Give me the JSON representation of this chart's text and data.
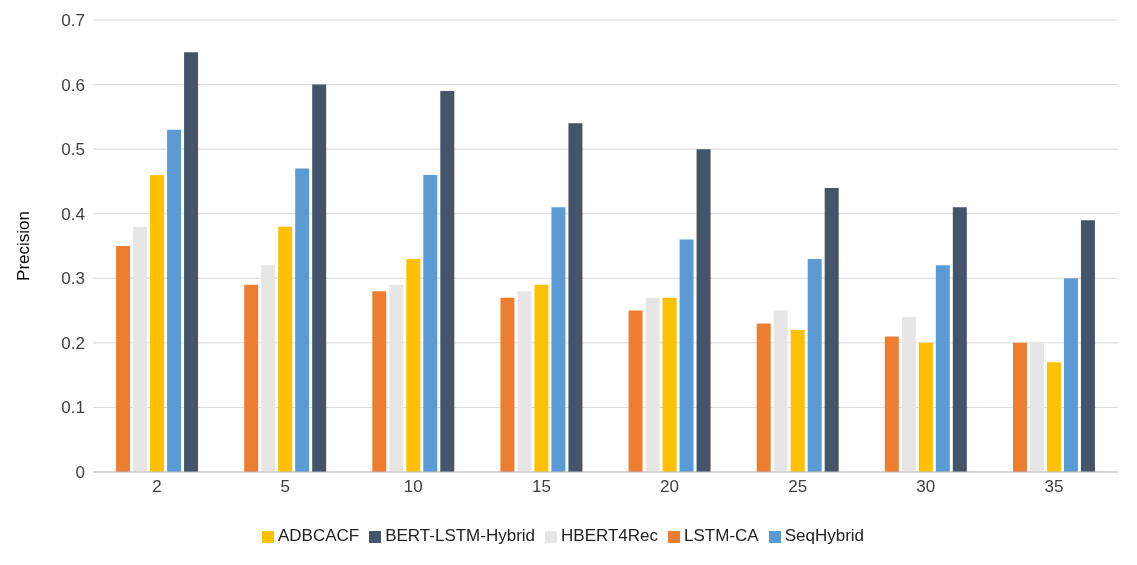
{
  "chart_data": {
    "type": "bar",
    "ylabel": "Precision",
    "categories": [
      "2",
      "5",
      "10",
      "15",
      "20",
      "25",
      "30",
      "35"
    ],
    "series": [
      {
        "name": "LSTM-CA",
        "color": "#ed7d31",
        "values": [
          0.35,
          0.29,
          0.28,
          0.27,
          0.25,
          0.23,
          0.21,
          0.2
        ]
      },
      {
        "name": "HBERT4Rec",
        "color": "#e7e6e6",
        "values": [
          0.38,
          0.32,
          0.29,
          0.28,
          0.27,
          0.25,
          0.24,
          0.2
        ]
      },
      {
        "name": "ADBCACF",
        "color": "#ffc000",
        "values": [
          0.46,
          0.38,
          0.33,
          0.29,
          0.27,
          0.22,
          0.2,
          0.17
        ]
      },
      {
        "name": "SeqHybrid",
        "color": "#5b9bd5",
        "values": [
          0.53,
          0.47,
          0.46,
          0.41,
          0.36,
          0.33,
          0.32,
          0.3
        ]
      },
      {
        "name": "BERT-LSTM-Hybrid",
        "color": "#44546a",
        "values": [
          0.65,
          0.6,
          0.59,
          0.54,
          0.5,
          0.44,
          0.41,
          0.39
        ]
      }
    ],
    "ylim": [
      0,
      0.7
    ],
    "yticks": [
      0,
      0.1,
      0.2,
      0.3,
      0.4,
      0.5,
      0.6,
      0.7
    ],
    "grid": "y",
    "legend": "bottom"
  }
}
